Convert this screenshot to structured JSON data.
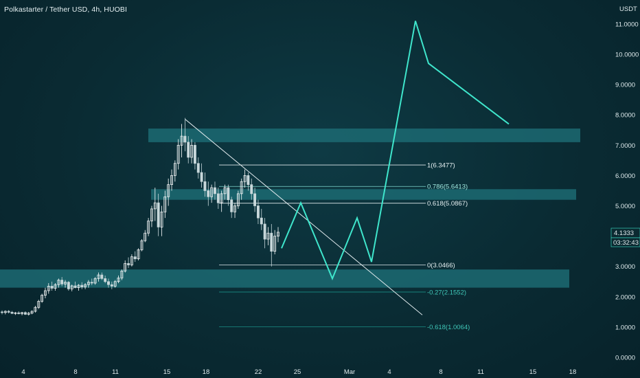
{
  "header": {
    "title": "Polkastarter / Tether USD, 4h, HUOBI",
    "currency": "USDT"
  },
  "colors": {
    "background": "#0a2b33",
    "zone": "#1c6a72",
    "projection": "#3fe6cc",
    "candle_up": "#ffffff",
    "candle_down": "#c7d7da",
    "trendline": "#dfe9ec",
    "fib_main": "#dfe9ec",
    "fib_ext": "#1a8f86",
    "price_badge": "#0b2a31"
  },
  "price_axis": {
    "ticks": [
      "11.0000",
      "10.0000",
      "9.0000",
      "8.0000",
      "7.0000",
      "6.0000",
      "5.0000",
      "4.0000",
      "3.0000",
      "2.0000",
      "1.0000",
      "0.0000"
    ],
    "current_price": "4.1333",
    "countdown": "03:32:43"
  },
  "time_axis": {
    "ticks": [
      "4",
      "8",
      "11",
      "15",
      "18",
      "22",
      "25",
      "Mar",
      "4",
      "8",
      "11",
      "15",
      "18"
    ]
  },
  "chart_data": {
    "type": "candlestick",
    "title": "Polkastarter / Tether USD, 4h, HUOBI",
    "ylabel": "USDT",
    "ylim": [
      0,
      11.5
    ],
    "grid": false,
    "x_tick_labels": [
      "4",
      "8",
      "11",
      "15",
      "18",
      "22",
      "25",
      "Mar",
      "4",
      "8",
      "11",
      "15",
      "18"
    ],
    "candles": [
      [
        1.5,
        1.55,
        1.42,
        1.48
      ],
      [
        1.48,
        1.55,
        1.42,
        1.52
      ],
      [
        1.52,
        1.56,
        1.45,
        1.49
      ],
      [
        1.49,
        1.53,
        1.43,
        1.45
      ],
      [
        1.45,
        1.5,
        1.4,
        1.47
      ],
      [
        1.47,
        1.52,
        1.42,
        1.44
      ],
      [
        1.44,
        1.5,
        1.39,
        1.48
      ],
      [
        1.48,
        1.52,
        1.4,
        1.42
      ],
      [
        1.42,
        1.5,
        1.38,
        1.46
      ],
      [
        1.46,
        1.55,
        1.42,
        1.52
      ],
      [
        1.52,
        1.7,
        1.48,
        1.65
      ],
      [
        1.65,
        1.9,
        1.6,
        1.85
      ],
      [
        1.85,
        2.1,
        1.8,
        2.05
      ],
      [
        2.05,
        2.3,
        1.95,
        2.2
      ],
      [
        2.2,
        2.45,
        2.1,
        2.35
      ],
      [
        2.35,
        2.5,
        2.2,
        2.28
      ],
      [
        2.28,
        2.45,
        2.2,
        2.4
      ],
      [
        2.4,
        2.6,
        2.3,
        2.55
      ],
      [
        2.55,
        2.65,
        2.35,
        2.42
      ],
      [
        2.42,
        2.55,
        2.3,
        2.48
      ],
      [
        2.48,
        2.52,
        2.2,
        2.26
      ],
      [
        2.26,
        2.4,
        2.18,
        2.36
      ],
      [
        2.36,
        2.5,
        2.28,
        2.3
      ],
      [
        2.3,
        2.42,
        2.2,
        2.38
      ],
      [
        2.38,
        2.48,
        2.25,
        2.32
      ],
      [
        2.32,
        2.45,
        2.25,
        2.4
      ],
      [
        2.4,
        2.55,
        2.3,
        2.48
      ],
      [
        2.48,
        2.6,
        2.38,
        2.45
      ],
      [
        2.45,
        2.65,
        2.4,
        2.6
      ],
      [
        2.6,
        2.8,
        2.5,
        2.72
      ],
      [
        2.72,
        2.8,
        2.55,
        2.6
      ],
      [
        2.6,
        2.7,
        2.45,
        2.5
      ],
      [
        2.5,
        2.6,
        2.3,
        2.4
      ],
      [
        2.4,
        2.5,
        2.25,
        2.35
      ],
      [
        2.35,
        2.55,
        2.3,
        2.5
      ],
      [
        2.5,
        2.7,
        2.45,
        2.62
      ],
      [
        2.62,
        2.9,
        2.55,
        2.85
      ],
      [
        2.85,
        3.2,
        2.8,
        3.1
      ],
      [
        3.1,
        3.3,
        2.95,
        3.05
      ],
      [
        3.05,
        3.4,
        3.0,
        3.32
      ],
      [
        3.32,
        3.5,
        3.15,
        3.25
      ],
      [
        3.25,
        3.6,
        3.2,
        3.55
      ],
      [
        3.55,
        3.9,
        3.5,
        3.85
      ],
      [
        3.85,
        4.2,
        3.8,
        4.1
      ],
      [
        4.1,
        4.6,
        4.0,
        4.5
      ],
      [
        4.5,
        5.0,
        4.3,
        4.9
      ],
      [
        4.9,
        5.6,
        4.5,
        5.1
      ],
      [
        5.1,
        5.4,
        4.0,
        4.3
      ],
      [
        4.3,
        5.0,
        4.0,
        4.8
      ],
      [
        4.8,
        5.5,
        4.6,
        5.3
      ],
      [
        5.3,
        5.9,
        5.0,
        5.7
      ],
      [
        5.7,
        6.2,
        5.5,
        6.0
      ],
      [
        6.0,
        6.5,
        5.8,
        6.4
      ],
      [
        6.4,
        7.2,
        6.2,
        7.0
      ],
      [
        7.0,
        7.7,
        6.6,
        7.3
      ],
      [
        7.3,
        7.9,
        6.8,
        7.1
      ],
      [
        7.1,
        7.3,
        6.4,
        6.6
      ],
      [
        6.6,
        7.2,
        6.4,
        7.0
      ],
      [
        7.0,
        7.1,
        6.2,
        6.4
      ],
      [
        6.4,
        6.6,
        5.9,
        6.1
      ],
      [
        6.1,
        6.4,
        5.6,
        5.8
      ],
      [
        5.8,
        6.1,
        5.3,
        5.5
      ],
      [
        5.5,
        5.8,
        5.0,
        5.3
      ],
      [
        5.3,
        5.7,
        5.1,
        5.6
      ],
      [
        5.6,
        5.8,
        5.2,
        5.4
      ],
      [
        5.4,
        5.6,
        4.9,
        5.1
      ],
      [
        5.1,
        5.5,
        4.8,
        5.4
      ],
      [
        5.4,
        5.7,
        5.2,
        5.6
      ],
      [
        5.6,
        5.7,
        5.0,
        5.2
      ],
      [
        5.2,
        5.3,
        4.6,
        4.8
      ],
      [
        4.8,
        5.1,
        4.6,
        5.0
      ],
      [
        5.0,
        5.5,
        4.9,
        5.4
      ],
      [
        5.4,
        5.9,
        5.2,
        5.8
      ],
      [
        5.8,
        6.2,
        5.6,
        6.0
      ],
      [
        6.0,
        6.1,
        5.5,
        5.7
      ],
      [
        5.7,
        5.9,
        5.2,
        5.4
      ],
      [
        5.4,
        5.6,
        4.8,
        5.0
      ],
      [
        5.0,
        5.2,
        4.4,
        4.6
      ],
      [
        4.6,
        4.9,
        4.2,
        4.4
      ],
      [
        4.4,
        4.6,
        3.6,
        3.9
      ],
      [
        3.9,
        4.3,
        3.7,
        4.1
      ],
      [
        4.1,
        4.4,
        3.0,
        3.5
      ],
      [
        3.5,
        4.2,
        3.4,
        4.0
      ],
      [
        4.0,
        4.3,
        3.8,
        4.13
      ]
    ],
    "zones": [
      {
        "low": 7.1,
        "high": 7.55
      },
      {
        "low": 5.2,
        "high": 5.55
      },
      {
        "low": 2.3,
        "high": 2.9
      }
    ],
    "fibonacci": [
      {
        "ratio": "1",
        "price": 6.3477,
        "label": "1(6.3477)"
      },
      {
        "ratio": "0.786",
        "price": 5.6413,
        "label": "0.786(5.6413)"
      },
      {
        "ratio": "0.618",
        "price": 5.0867,
        "label": "0.618(5.0867)"
      },
      {
        "ratio": "0",
        "price": 3.0466,
        "label": "0(3.0466)"
      },
      {
        "ratio": "-0.27",
        "price": 2.1552,
        "label": "-0.27(2.1552)"
      },
      {
        "ratio": "-0.618",
        "price": 1.0064,
        "label": "-0.618(1.0064)"
      }
    ],
    "trendline": {
      "from": [
        7.85
      ],
      "to": [
        1.4
      ]
    },
    "projection_path": [
      3.6,
      5.1,
      2.6,
      4.6,
      3.15,
      11.1,
      9.7,
      7.7
    ]
  }
}
